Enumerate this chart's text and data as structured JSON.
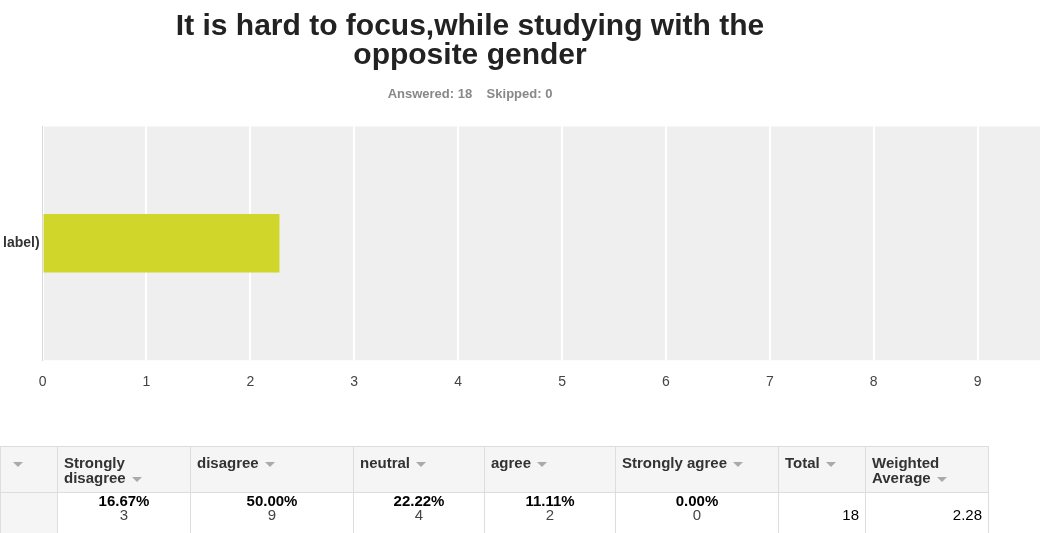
{
  "chart_data": [
    {
      "type": "bar",
      "orientation": "horizontal",
      "title": "It is hard to focus,while studying with the opposite gender",
      "subtitle": "Answered: 18    Skipped: 0",
      "categories": [
        "label)"
      ],
      "values": [
        2.28
      ],
      "color": "#d0d62a",
      "xlim": [
        0,
        9.6
      ],
      "xticks": [
        0,
        1,
        2,
        3,
        4,
        5,
        6,
        7,
        8,
        9
      ],
      "grid": "x",
      "legend": false
    },
    {
      "type": "other",
      "categories": [
        "Strongly disagree",
        "disagree",
        "neutral",
        "agree",
        "Strongly agree",
        "Total",
        "Weighted Average"
      ],
      "annotations": [
        "16.67%\n3",
        "50.00%\n9",
        "22.22%\n4",
        "11.11%\n2",
        "0.00%\n0",
        "18",
        "2.28"
      ]
    }
  ]
}
